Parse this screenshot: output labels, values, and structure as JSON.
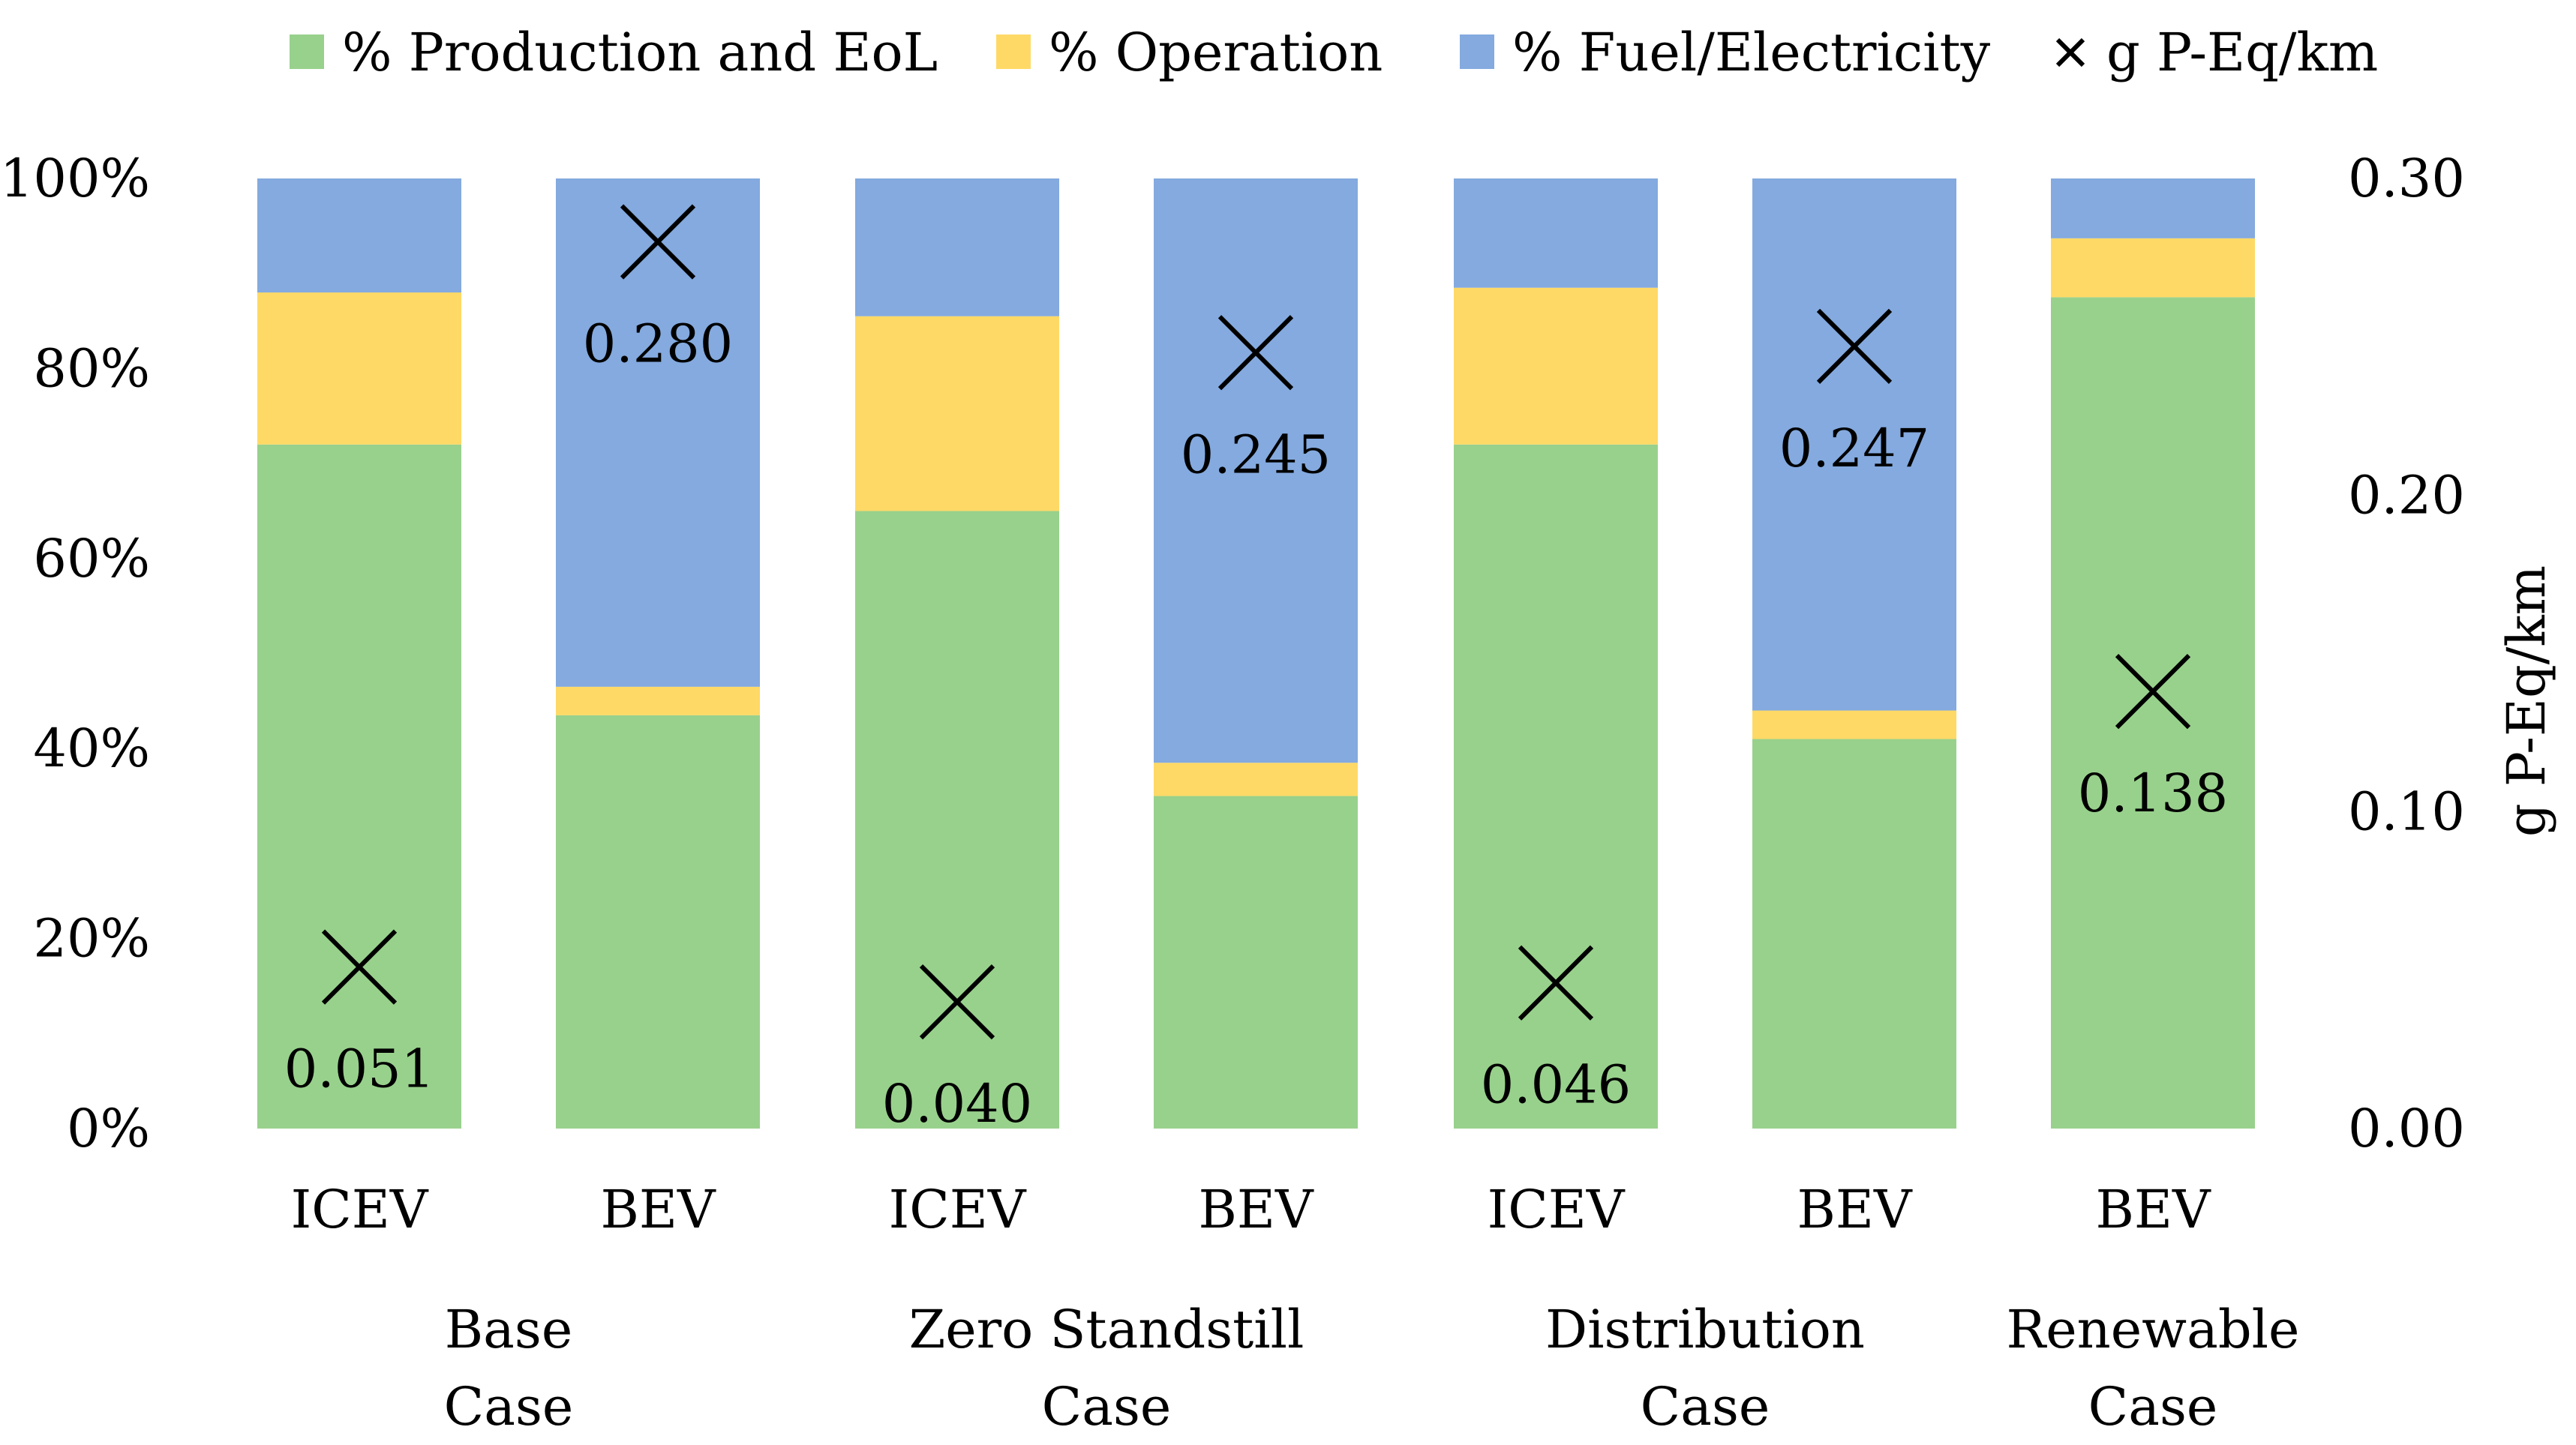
{
  "chart_data": {
    "type": "bar",
    "stacked": true,
    "percent_stacked": true,
    "categories": [
      "ICEV",
      "BEV",
      "ICEV",
      "BEV",
      "ICEV",
      "BEV",
      "BEV"
    ],
    "groups": [
      {
        "label_line1": "Base",
        "label_line2": "Case",
        "bars": [
          0,
          1
        ]
      },
      {
        "label_line1": "Zero Standstill",
        "label_line2": "Case",
        "bars": [
          2,
          3
        ]
      },
      {
        "label_line1": "Distribution",
        "label_line2": "Case",
        "bars": [
          4,
          5
        ]
      },
      {
        "label_line1": "Renewable",
        "label_line2": "Case",
        "bars": [
          6
        ]
      }
    ],
    "series": [
      {
        "name": "% Production and EoL",
        "color": "#98D18C",
        "values": [
          72,
          43.5,
          65,
          35,
          72,
          41,
          87.5
        ]
      },
      {
        "name": "% Operation",
        "color": "#FFD966",
        "values": [
          16,
          3,
          20.5,
          3.5,
          16.5,
          3,
          6.2
        ]
      },
      {
        "name": "% Fuel/Electricity",
        "color": "#84AADF",
        "values": [
          12,
          53.5,
          14.5,
          61.5,
          11.5,
          56,
          6.3
        ]
      }
    ],
    "marker_series": {
      "name": "g P-Eq/km",
      "marker": "x",
      "color": "#000000",
      "values": [
        0.051,
        0.28,
        0.04,
        0.245,
        0.046,
        0.247,
        0.138
      ],
      "labels": [
        "0.051",
        "0.280",
        "0.040",
        "0.245",
        "0.046",
        "0.247",
        "0.138"
      ]
    },
    "y_left": {
      "ylim": [
        0,
        100
      ],
      "ticks": [
        0,
        20,
        40,
        60,
        80,
        100
      ],
      "tick_labels": [
        "0%",
        "20%",
        "40%",
        "60%",
        "80%",
        "100%"
      ]
    },
    "y_right": {
      "label": "g P-Eq/km",
      "ylim": [
        0,
        0.3
      ],
      "ticks": [
        0,
        0.1,
        0.2,
        0.3
      ],
      "tick_labels": [
        "0.00",
        "0.10",
        "0.20",
        "0.30"
      ]
    },
    "legend_position": "top",
    "grid": false
  }
}
